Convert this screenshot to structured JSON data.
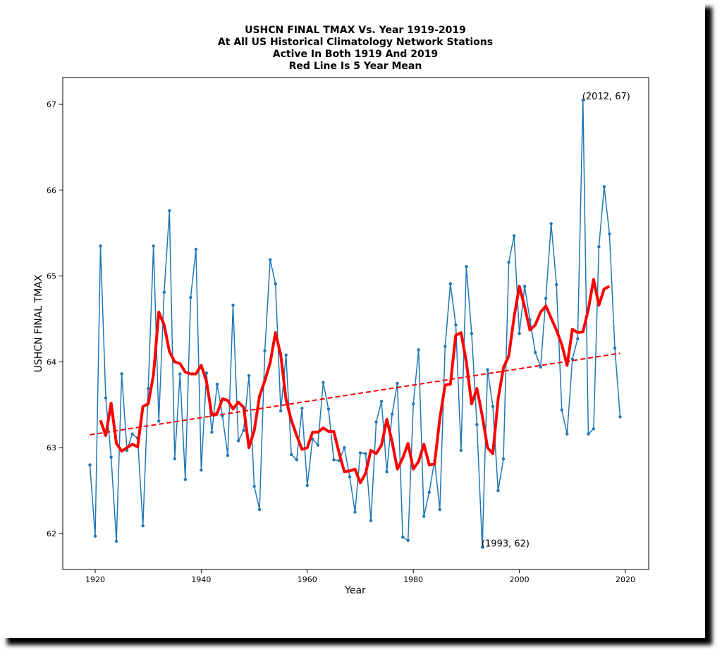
{
  "chart_data": {
    "type": "line",
    "title_lines": [
      "USHCN FINAL TMAX Vs. Year 1919-2019",
      "At All US Historical Climatology Network Stations",
      "Active In Both 1919 And 2019",
      "Red Line Is 5 Year Mean"
    ],
    "xlabel": "Year",
    "ylabel": "USHCN FINAL TMAX",
    "xlim": [
      1914,
      2024
    ],
    "ylim": [
      61.6,
      67.3
    ],
    "xticks": [
      1920,
      1940,
      1960,
      1980,
      2000,
      2020
    ],
    "yticks": [
      62,
      63,
      64,
      65,
      66,
      67
    ],
    "series": [
      {
        "role": "annual",
        "color": "#1f77b4",
        "x": [
          1919,
          1920,
          1921,
          1922,
          1923,
          1924,
          1925,
          1926,
          1927,
          1928,
          1929,
          1930,
          1931,
          1932,
          1933,
          1934,
          1935,
          1936,
          1937,
          1938,
          1939,
          1940,
          1941,
          1942,
          1943,
          1944,
          1945,
          1946,
          1947,
          1948,
          1949,
          1950,
          1951,
          1952,
          1953,
          1954,
          1955,
          1956,
          1957,
          1958,
          1959,
          1960,
          1961,
          1962,
          1963,
          1964,
          1965,
          1966,
          1967,
          1968,
          1969,
          1970,
          1971,
          1972,
          1973,
          1974,
          1975,
          1976,
          1977,
          1978,
          1979,
          1980,
          1981,
          1982,
          1983,
          1984,
          1985,
          1986,
          1987,
          1988,
          1989,
          1990,
          1991,
          1992,
          1993,
          1994,
          1995,
          1996,
          1997,
          1998,
          1999,
          2000,
          2001,
          2002,
          2003,
          2004,
          2005,
          2006,
          2007,
          2008,
          2009,
          2010,
          2011,
          2012,
          2013,
          2014,
          2015,
          2016,
          2017,
          2018,
          2019
        ],
        "values": [
          62.8,
          61.97,
          65.35,
          63.58,
          62.89,
          61.91,
          63.86,
          62.97,
          63.16,
          63.11,
          62.09,
          63.69,
          65.35,
          63.31,
          64.81,
          65.76,
          62.87,
          63.86,
          62.63,
          64.75,
          65.31,
          62.74,
          63.87,
          63.18,
          63.74,
          63.37,
          62.91,
          64.66,
          63.08,
          63.2,
          63.84,
          62.55,
          62.28,
          64.13,
          65.19,
          64.91,
          63.43,
          64.08,
          62.92,
          62.86,
          63.46,
          62.56,
          63.1,
          63.03,
          63.76,
          63.45,
          62.86,
          62.85,
          63.0,
          62.66,
          62.25,
          62.94,
          62.93,
          62.15,
          63.3,
          63.54,
          62.72,
          63.39,
          63.75,
          61.96,
          61.92,
          63.51,
          64.14,
          62.2,
          62.48,
          62.85,
          62.28,
          64.18,
          64.91,
          64.43,
          62.97,
          65.11,
          64.33,
          63.27,
          61.84,
          63.91,
          63.48,
          62.5,
          62.87,
          65.16,
          65.47,
          64.33,
          64.88,
          64.49,
          64.11,
          63.94,
          64.74,
          65.61,
          64.9,
          63.44,
          63.16,
          64.03,
          64.27,
          67.05,
          63.16,
          63.22,
          65.34,
          66.04,
          65.49,
          64.16,
          63.36
        ]
      },
      {
        "role": "5-year mean",
        "color": "#ff0000",
        "x": [
          1921,
          1922,
          1923,
          1924,
          1925,
          1926,
          1927,
          1928,
          1929,
          1930,
          1931,
          1932,
          1933,
          1934,
          1935,
          1936,
          1937,
          1938,
          1939,
          1940,
          1941,
          1942,
          1943,
          1944,
          1945,
          1946,
          1947,
          1948,
          1949,
          1950,
          1951,
          1952,
          1953,
          1954,
          1955,
          1956,
          1957,
          1958,
          1959,
          1960,
          1961,
          1962,
          1963,
          1964,
          1965,
          1966,
          1967,
          1968,
          1969,
          1970,
          1971,
          1972,
          1973,
          1974,
          1975,
          1976,
          1977,
          1978,
          1979,
          1980,
          1981,
          1982,
          1983,
          1984,
          1985,
          1986,
          1987,
          1988,
          1989,
          1990,
          1991,
          1992,
          1993,
          1994,
          1995,
          1996,
          1997,
          1998,
          1999,
          2000,
          2001,
          2002,
          2003,
          2004,
          2005,
          2006,
          2007,
          2008,
          2009,
          2010,
          2011,
          2012,
          2013,
          2014,
          2015,
          2016,
          2017
        ],
        "values": [
          63.32,
          63.14,
          63.52,
          63.05,
          62.96,
          63.0,
          63.04,
          63.01,
          63.48,
          63.51,
          63.85,
          64.58,
          64.43,
          64.12,
          64.0,
          63.98,
          63.88,
          63.86,
          63.86,
          63.96,
          63.77,
          63.38,
          63.4,
          63.57,
          63.55,
          63.45,
          63.53,
          63.47,
          63.0,
          63.2,
          63.6,
          63.78,
          63.99,
          64.34,
          64.08,
          63.56,
          63.32,
          63.14,
          62.98,
          63.0,
          63.18,
          63.18,
          63.23,
          63.19,
          63.19,
          62.94,
          62.72,
          62.73,
          62.75,
          62.59,
          62.7,
          62.97,
          62.93,
          63.03,
          63.33,
          63.07,
          62.75,
          62.88,
          63.05,
          62.75,
          62.84,
          63.04,
          62.8,
          62.81,
          63.34,
          63.73,
          63.74,
          64.31,
          64.34,
          64.0,
          63.51,
          63.69,
          63.37,
          63.0,
          62.93,
          63.57,
          63.93,
          64.07,
          64.52,
          64.88,
          64.64,
          64.37,
          64.43,
          64.58,
          64.65,
          64.51,
          64.37,
          64.2,
          63.96,
          64.38,
          64.34,
          64.35,
          64.61,
          64.96,
          64.66,
          64.85,
          64.88
        ]
      },
      {
        "role": "trend",
        "color": "#ff0000",
        "style": "dashed",
        "x": [
          1919,
          2019
        ],
        "values": [
          63.15,
          64.1
        ]
      }
    ],
    "annotations": [
      {
        "text": "(2012, 67)",
        "x": 2012,
        "y": 67.05
      },
      {
        "text": "(1993, 62)",
        "x": 1993,
        "y": 61.84
      }
    ]
  }
}
